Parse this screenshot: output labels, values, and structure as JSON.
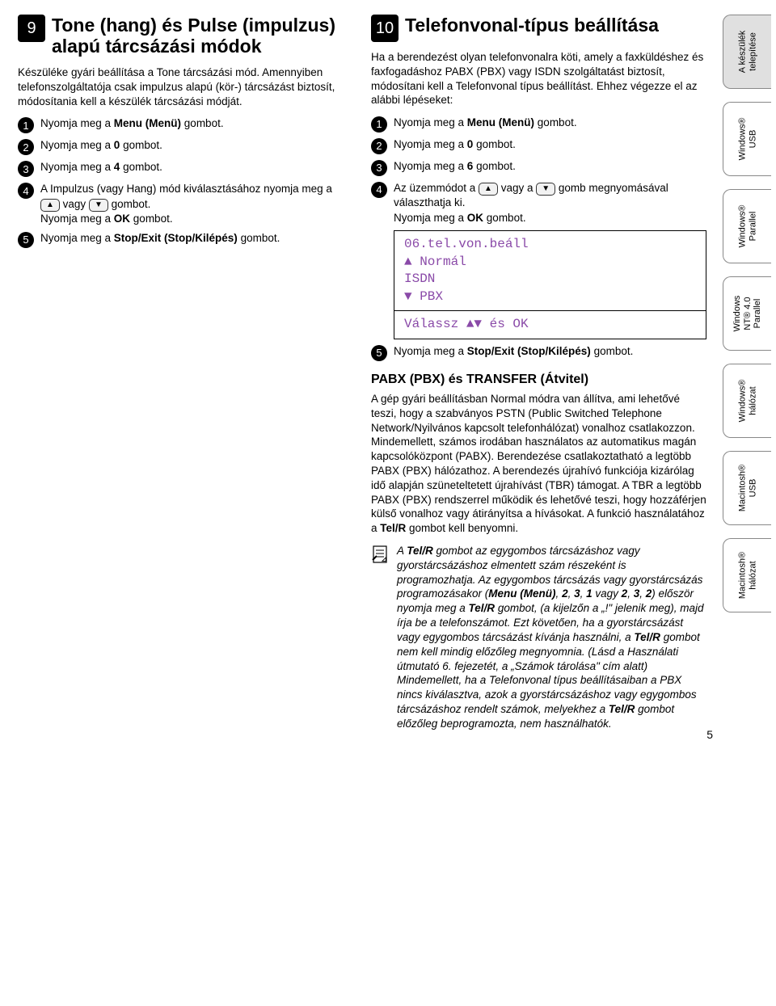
{
  "left": {
    "num": "9",
    "title": "Tone (hang) és Pulse (impulzus) alapú tárcsázási módok",
    "intro": "Készüléke gyári beállítása a Tone tárcsázási mód. Amennyiben telefonszolgáltatója csak impulzus alapú (kör-) tárcsázást biztosít, módosítania kell a készülék tárcsázási módját.",
    "steps": {
      "s1": "Nyomja meg a <b>Menu (Menü)</b> gombot.",
      "s2": "Nyomja meg a <b>0</b> gombot.",
      "s3": "Nyomja meg a <b>4</b> gombot.",
      "s4a": "A Impulzus (vagy Hang) mód kiválasztásához nyomja meg a ",
      "s4b": " vagy ",
      "s4c": " gombot.",
      "s4d": "Nyomja meg a <b>OK</b> gombot.",
      "s5": "Nyomja meg a <b>Stop/Exit (Stop/Kilépés)</b> gombot."
    }
  },
  "right": {
    "num": "10",
    "title": "Telefonvonal-típus beállítása",
    "intro": "Ha a berendezést olyan telefonvonalra köti, amely a faxküldéshez és faxfogadáshoz PABX (PBX) vagy ISDN szolgáltatást biztosít, módosítani kell a Telefonvonal típus beállítást. Ehhez végezze el az alábbi lépéseket:",
    "steps": {
      "s1": "Nyomja meg a <b>Menu (Menü)</b> gombot.",
      "s2": "Nyomja meg a <b>0</b> gombot.",
      "s3": "Nyomja meg a <b>6</b> gombot.",
      "s4a": "Az üzemmódot a ",
      "s4b": " vagy a ",
      "s4c": " gomb megnyomásával választhatja ki.",
      "s4d": "Nyomja meg a <b>OK</b> gombot.",
      "s5": "Nyomja meg a <b>Stop/Exit (Stop/Kilépés)</b> gombot."
    },
    "display": {
      "l1": "06.tel.von.beáll",
      "l2": "▲     Normál",
      "l3": "      ISDN",
      "l4": "▼     PBX",
      "bottom": "Válassz ▲▼ és OK"
    },
    "sub_title": "PABX (PBX) és TRANSFER (Átvitel)",
    "sub_body": "A gép gyári beállításban Normal módra van állítva, ami lehetővé teszi, hogy a szabványos PSTN (Public Switched Telephone Network/Nyilvános kapcsolt telefonhálózat) vonalhoz csatlakozzon. Mindemellett, számos irodában használatos az automatikus magán kapcsolóközpont (PABX). Berendezése csatlakoztatható a legtöbb PABX (PBX) hálózathoz. A berendezés újrahívó funkciója kizárólag idő alapján szüneteltetett újrahívást (TBR) támogat. A TBR a legtöbb PABX (PBX) rendszerrel működik és lehetővé teszi, hogy hozzáférjen külső vonalhoz vagy átirányítsa a hívásokat. A funkció használatához a <b>Tel/R</b> gombot kell benyomni.",
    "note": "A <b>Tel/R</b> gombot az egygombos tárcsázáshoz vagy gyorstárcsázáshoz elmentett szám részeként is programozhatja. Az egygombos tárcsázás vagy gyorstárcsázás programozásakor (<b>Menu (Menü)</b>, <b>2</b>, <b>3</b>, <b>1</b> vagy <b>2</b>, <b>3</b>, <b>2</b>) először nyomja meg a <b>Tel/R</b> gombot, (a kijelzőn a „!\" jelenik meg), majd írja be a telefonszámot. Ezt követően, ha a gyorstárcsázást vagy egygombos tárcsázást kívánja használni, a <b>Tel/R</b> gombot nem kell mindig előzőleg megnyomnia. (Lásd a Használati útmutató 6. fejezetét, a „Számok tárolása\" cím alatt) Mindemellett, ha a Telefonvonal típus beállításaiban a PBX nincs kiválasztva, azok a gyorstárcsázáshoz vagy egygombos tárcsázáshoz rendelt számok, melyekhez a <b>Tel/R</b> gombot előzőleg beprogramozta, nem használhatók."
  },
  "tabs": {
    "t1": "A készülék\ntelepítése",
    "t2": "Windows®\nUSB",
    "t3": "Windows®\nParallel",
    "t4": "Windows\nNT® 4.0\nParallel",
    "t5": "Windows®\nhálózat",
    "t6": "Macintosh®\nUSB",
    "t7": "Macintosh®\nhálózat"
  },
  "page_num": "5"
}
